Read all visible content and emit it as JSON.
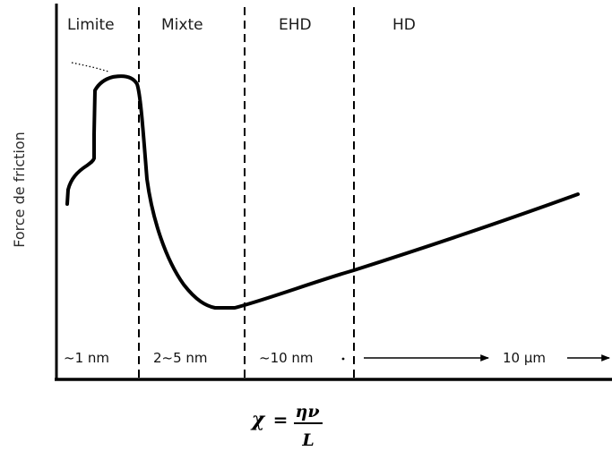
{
  "y_axis_label": "Force de friction",
  "regimes": [
    {
      "label": "Limite",
      "scale": "~1 nm"
    },
    {
      "label": "Mixte",
      "scale": "2~5 nm"
    },
    {
      "label": "EHD",
      "scale": "~10 nm"
    },
    {
      "label": "HD",
      "scale": "10 µm"
    }
  ],
  "x_axis_formula": {
    "symbol": "χ",
    "equals": "=",
    "numerator": "ην",
    "denominator": "L"
  },
  "colors": {
    "curve": "#000000",
    "axes": "#000000",
    "text": "#1a1a1a"
  }
}
